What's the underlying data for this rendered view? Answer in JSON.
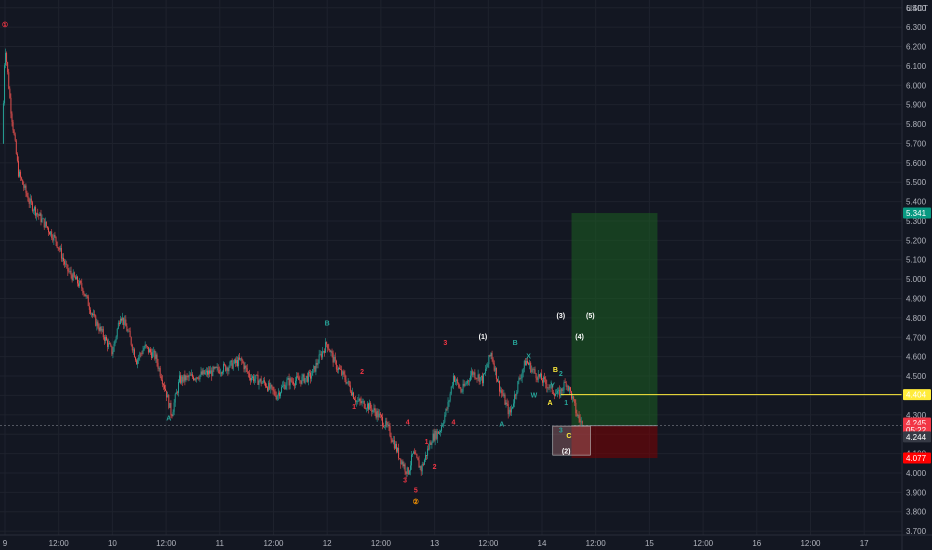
{
  "chart_data": {
    "type": "candlestick",
    "currency": "USDT",
    "y_axis": {
      "ticks": [
        "6.400",
        "6.300",
        "6.200",
        "6.100",
        "6.000",
        "5.900",
        "5.800",
        "5.700",
        "5.600",
        "5.500",
        "5.400",
        "5.300",
        "5.200",
        "5.100",
        "5.000",
        "4.900",
        "4.800",
        "4.700",
        "4.600",
        "4.500",
        "4.400",
        "4.300",
        "4.200",
        "4.100",
        "4.000",
        "3.900",
        "3.800",
        "3.700"
      ],
      "range": [
        3.68,
        6.44
      ]
    },
    "x_axis": {
      "ticks": [
        "9",
        "12:00",
        "10",
        "12:00",
        "11",
        "12:00",
        "12",
        "12:00",
        "13",
        "12:00",
        "14",
        "12:00",
        "15",
        "12:00",
        "16",
        "12:00",
        "17"
      ]
    },
    "price_series": [
      [
        0,
        5.7
      ],
      [
        0.05,
        6.22
      ],
      [
        0.15,
        5.9
      ],
      [
        0.3,
        5.55
      ],
      [
        0.5,
        5.4
      ],
      [
        0.7,
        5.32
      ],
      [
        1.0,
        5.2
      ],
      [
        1.2,
        5.05
      ],
      [
        1.5,
        4.95
      ],
      [
        1.7,
        4.8
      ],
      [
        1.9,
        4.7
      ],
      [
        2.05,
        4.62
      ],
      [
        2.2,
        4.82
      ],
      [
        2.35,
        4.72
      ],
      [
        2.5,
        4.58
      ],
      [
        2.65,
        4.65
      ],
      [
        2.85,
        4.6
      ],
      [
        3.05,
        4.42
      ],
      [
        3.15,
        4.3
      ],
      [
        3.3,
        4.48
      ],
      [
        3.6,
        4.5
      ],
      [
        3.9,
        4.52
      ],
      [
        4.2,
        4.55
      ],
      [
        4.45,
        4.58
      ],
      [
        4.6,
        4.5
      ],
      [
        4.9,
        4.46
      ],
      [
        5.1,
        4.4
      ],
      [
        5.3,
        4.47
      ],
      [
        5.55,
        4.48
      ],
      [
        5.75,
        4.5
      ],
      [
        5.95,
        4.62
      ],
      [
        6.05,
        4.67
      ],
      [
        6.2,
        4.56
      ],
      [
        6.4,
        4.48
      ],
      [
        6.6,
        4.37
      ],
      [
        6.8,
        4.35
      ],
      [
        7.0,
        4.3
      ],
      [
        7.2,
        4.22
      ],
      [
        7.4,
        4.08
      ],
      [
        7.55,
        4.0
      ],
      [
        7.65,
        4.1
      ],
      [
        7.8,
        4.02
      ],
      [
        8.0,
        4.18
      ],
      [
        8.15,
        4.22
      ],
      [
        8.3,
        4.35
      ],
      [
        8.4,
        4.5
      ],
      [
        8.55,
        4.42
      ],
      [
        8.75,
        4.52
      ],
      [
        8.95,
        4.48
      ],
      [
        9.1,
        4.62
      ],
      [
        9.25,
        4.45
      ],
      [
        9.45,
        4.3
      ],
      [
        9.6,
        4.46
      ],
      [
        9.75,
        4.58
      ],
      [
        9.9,
        4.52
      ],
      [
        10.05,
        4.48
      ],
      [
        10.2,
        4.44
      ],
      [
        10.35,
        4.4
      ],
      [
        10.5,
        4.47
      ],
      [
        10.6,
        4.4
      ],
      [
        10.7,
        4.3
      ],
      [
        10.8,
        4.25
      ]
    ],
    "wave_labels": [
      {
        "text": "①",
        "x": 0.05,
        "y": 6.3,
        "color": "#f23645"
      },
      {
        "text": "A",
        "x": 3.1,
        "y": 4.27,
        "color": "#26a69a"
      },
      {
        "text": "B",
        "x": 6.05,
        "y": 4.76,
        "color": "#26a69a"
      },
      {
        "text": "2",
        "x": 6.7,
        "y": 4.51,
        "color": "#f23645"
      },
      {
        "text": "1",
        "x": 6.55,
        "y": 4.33,
        "color": "#f23645"
      },
      {
        "text": "4",
        "x": 7.55,
        "y": 4.25,
        "color": "#f23645"
      },
      {
        "text": "3",
        "x": 7.5,
        "y": 3.95,
        "color": "#f23645"
      },
      {
        "text": "5",
        "x": 7.7,
        "y": 3.9,
        "color": "#f23645"
      },
      {
        "text": "②",
        "x": 7.7,
        "y": 3.84,
        "color": "#ff9800"
      },
      {
        "text": "2",
        "x": 8.05,
        "y": 4.02,
        "color": "#f23645"
      },
      {
        "text": "1",
        "x": 7.9,
        "y": 4.15,
        "color": "#f23645"
      },
      {
        "text": "3",
        "x": 8.25,
        "y": 4.66,
        "color": "#f23645"
      },
      {
        "text": "4",
        "x": 8.4,
        "y": 4.25,
        "color": "#f23645"
      },
      {
        "text": "(1)",
        "x": 8.95,
        "y": 4.69,
        "color": "#ffffff"
      },
      {
        "text": "B",
        "x": 9.55,
        "y": 4.66,
        "color": "#26a69a"
      },
      {
        "text": "X",
        "x": 9.8,
        "y": 4.59,
        "color": "#26a69a"
      },
      {
        "text": "A",
        "x": 9.3,
        "y": 4.24,
        "color": "#26a69a"
      },
      {
        "text": "W",
        "x": 9.9,
        "y": 4.39,
        "color": "#26a69a"
      },
      {
        "text": "Y",
        "x": 10.25,
        "y": 4.44,
        "color": "#26a69a"
      },
      {
        "text": "B",
        "x": 10.3,
        "y": 4.52,
        "color": "#ffeb3b"
      },
      {
        "text": "2",
        "x": 10.4,
        "y": 4.5,
        "color": "#26a69a"
      },
      {
        "text": "A",
        "x": 10.2,
        "y": 4.35,
        "color": "#ffeb3b"
      },
      {
        "text": "1",
        "x": 10.5,
        "y": 4.35,
        "color": "#26a69a"
      },
      {
        "text": "3",
        "x": 10.4,
        "y": 4.21,
        "color": "#26a69a"
      },
      {
        "text": "C",
        "x": 10.55,
        "y": 4.18,
        "color": "#ffeb3b"
      },
      {
        "text": "(2)",
        "x": 10.5,
        "y": 4.1,
        "color": "#ffffff"
      },
      {
        "text": "(3)",
        "x": 10.4,
        "y": 4.8,
        "color": "#ffffff"
      },
      {
        "text": "(4)",
        "x": 10.75,
        "y": 4.69,
        "color": "#ffffff"
      },
      {
        "text": "(5)",
        "x": 10.95,
        "y": 4.8,
        "color": "#ffffff"
      }
    ],
    "position": {
      "entry": 4.244,
      "target": 5.341,
      "stop": 4.077,
      "start_x": 10.6,
      "end_x": 12.2
    },
    "zone_box": {
      "x0": 10.25,
      "x1": 10.95,
      "y0": 4.092,
      "y1": 4.242
    },
    "hline": {
      "price": 4.404,
      "label": "4.404",
      "color": "#ffeb3b"
    },
    "crosshair_price": 4.244,
    "price_tags": [
      {
        "text": "5.341",
        "price": 5.341,
        "color": "#089981"
      },
      {
        "text": "4.404",
        "price": 4.404,
        "color": "#ffeb3b",
        "textColor": "#131722"
      },
      {
        "text": "4.245",
        "price": 4.258,
        "color": "#f23645"
      },
      {
        "text": "05:22",
        "price": 4.222,
        "color": "#f23645"
      },
      {
        "text": "4.244",
        "price": 4.186,
        "color": "#363a45"
      },
      {
        "text": "4.077",
        "price": 4.077,
        "color": "#ff0000"
      }
    ]
  }
}
